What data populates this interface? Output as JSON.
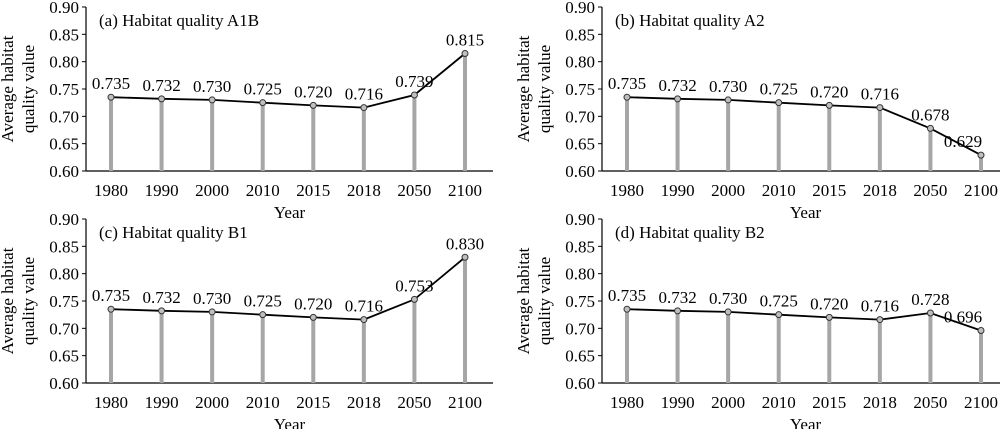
{
  "chart_data": [
    {
      "type": "line",
      "title": "(a) Habitat quality A1B",
      "xlabel": "Year",
      "ylabel": [
        "Average habitat",
        "quality value"
      ],
      "categories": [
        "1980",
        "1990",
        "2000",
        "2010",
        "2015",
        "2018",
        "2050",
        "2100"
      ],
      "values": [
        0.735,
        0.732,
        0.73,
        0.725,
        0.72,
        0.716,
        0.739,
        0.815
      ],
      "data_labels": [
        "0.735",
        "0.732",
        "0.730",
        "0.725",
        "0.720",
        "0.716",
        "0.739",
        "0.815"
      ],
      "ylim": [
        0.6,
        0.9
      ],
      "yticks": [
        "0.60",
        "0.65",
        "0.70",
        "0.75",
        "0.80",
        "0.85",
        "0.90"
      ],
      "grid": false,
      "legend": "none"
    },
    {
      "type": "line",
      "title": "(b) Habitat quality A2",
      "xlabel": "Year",
      "ylabel": [
        "Average habitat",
        "quality value"
      ],
      "categories": [
        "1980",
        "1990",
        "2000",
        "2010",
        "2015",
        "2018",
        "2050",
        "2100"
      ],
      "values": [
        0.735,
        0.732,
        0.73,
        0.725,
        0.72,
        0.716,
        0.678,
        0.629
      ],
      "data_labels": [
        "0.735",
        "0.732",
        "0.730",
        "0.725",
        "0.720",
        "0.716",
        "0.678",
        "0.629"
      ],
      "ylim": [
        0.6,
        0.9
      ],
      "yticks": [
        "0.60",
        "0.65",
        "0.70",
        "0.75",
        "0.80",
        "0.85",
        "0.90"
      ],
      "grid": false,
      "legend": "none"
    },
    {
      "type": "line",
      "title": "(c) Habitat quality B1",
      "xlabel": "Year",
      "ylabel": [
        "Average habitat",
        "quality value"
      ],
      "categories": [
        "1980",
        "1990",
        "2000",
        "2010",
        "2015",
        "2018",
        "2050",
        "2100"
      ],
      "values": [
        0.735,
        0.732,
        0.73,
        0.725,
        0.72,
        0.716,
        0.753,
        0.83
      ],
      "data_labels": [
        "0.735",
        "0.732",
        "0.730",
        "0.725",
        "0.720",
        "0.716",
        "0.753",
        "0.830"
      ],
      "ylim": [
        0.6,
        0.9
      ],
      "yticks": [
        "0.60",
        "0.65",
        "0.70",
        "0.75",
        "0.80",
        "0.85",
        "0.90"
      ],
      "grid": false,
      "legend": "none"
    },
    {
      "type": "line",
      "title": "(d) Habitat quality B2",
      "xlabel": "Year",
      "ylabel": [
        "Average habitat",
        "quality value"
      ],
      "categories": [
        "1980",
        "1990",
        "2000",
        "2010",
        "2015",
        "2018",
        "2050",
        "2100"
      ],
      "values": [
        0.735,
        0.732,
        0.73,
        0.725,
        0.72,
        0.716,
        0.728,
        0.696
      ],
      "data_labels": [
        "0.735",
        "0.732",
        "0.730",
        "0.725",
        "0.720",
        "0.716",
        "0.728",
        "0.696"
      ],
      "ylim": [
        0.6,
        0.9
      ],
      "yticks": [
        "0.60",
        "0.65",
        "0.70",
        "0.75",
        "0.80",
        "0.85",
        "0.90"
      ],
      "grid": false,
      "legend": "none"
    }
  ],
  "style": {
    "line_color": "#000000",
    "drop_line_color": "#a6a6a6",
    "marker_fill": "#bfbfbf",
    "axis_color": "#000000"
  }
}
